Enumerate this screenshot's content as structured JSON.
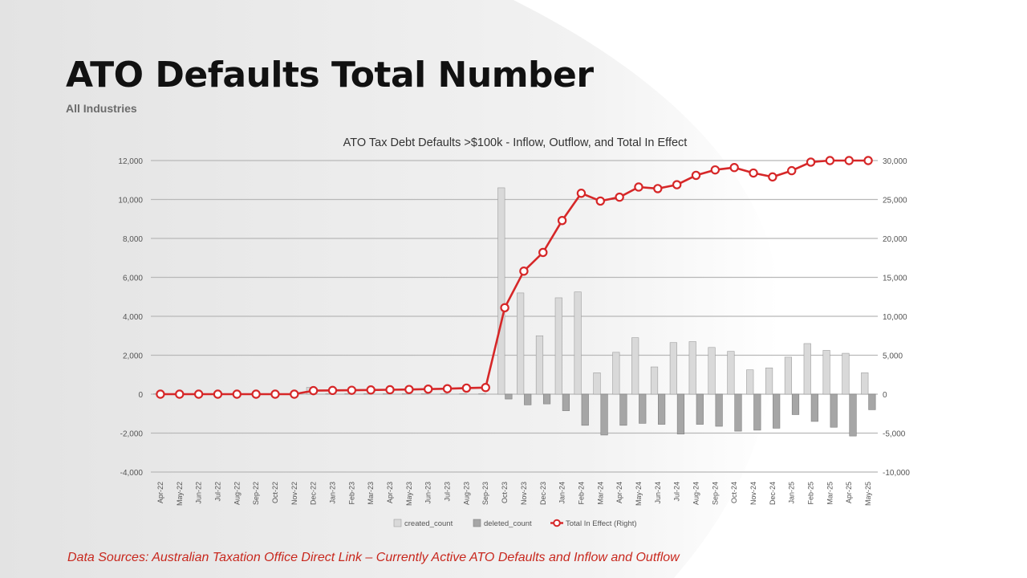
{
  "slide": {
    "title": "ATO Defaults Total Number",
    "subtitle": "All Industries",
    "footer": "Data Sources: Australian Taxation Office Direct Link – Currently Active ATO Defaults and Inflow and Outflow",
    "accent_color": "#c8281e"
  },
  "chart_data": {
    "type": "bar",
    "title": "ATO Tax Debt Defaults >$100k - Inflow, Outflow, and Total In Effect",
    "xlabel": "",
    "ylabel": "",
    "categories": [
      "Apr-22",
      "May-22",
      "Jun-22",
      "Jul-22",
      "Aug-22",
      "Sep-22",
      "Oct-22",
      "Nov-22",
      "Dec-22",
      "Jan-23",
      "Feb-23",
      "Mar-23",
      "Apr-23",
      "May-23",
      "Jun-23",
      "Jul-23",
      "Aug-23",
      "Sep-23",
      "Oct-23",
      "Nov-23",
      "Dec-23",
      "Jan-24",
      "Feb-24",
      "Mar-24",
      "Apr-24",
      "May-24",
      "Jun-24",
      "Jul-24",
      "Aug-24",
      "Sep-24",
      "Oct-24",
      "Nov-24",
      "Dec-24",
      "Jan-25",
      "Feb-25",
      "Mar-25",
      "Apr-25",
      "May-25"
    ],
    "ylim": [
      -4000,
      12000
    ],
    "y2lim": [
      -10000,
      30000
    ],
    "yticks": [
      "12,000",
      "10,000",
      "8,000",
      "6,000",
      "4,000",
      "2,000",
      "0",
      "-2,000",
      "-4,000"
    ],
    "y2ticks": [
      "30,000",
      "25,000",
      "20,000",
      "15,000",
      "10,000",
      "5,000",
      "0",
      "-5,000",
      "-10,000"
    ],
    "grid": true,
    "legend_position": "bottom",
    "series": [
      {
        "name": "created_count",
        "type": "bar",
        "axis": "left",
        "color": "#d9d9d9",
        "values": [
          20,
          0,
          0,
          0,
          0,
          0,
          0,
          0,
          350,
          30,
          30,
          30,
          30,
          30,
          30,
          30,
          30,
          30,
          10600,
          5200,
          3000,
          4950,
          5250,
          1100,
          2150,
          2900,
          1400,
          2650,
          2700,
          2400,
          2200,
          1250,
          1350,
          1900,
          2600,
          2250,
          2100,
          1100
        ]
      },
      {
        "name": "deleted_count",
        "type": "bar",
        "axis": "left",
        "color": "#a6a6a6",
        "values": [
          0,
          0,
          0,
          0,
          0,
          0,
          0,
          0,
          0,
          0,
          0,
          0,
          0,
          0,
          0,
          0,
          0,
          0,
          -250,
          -550,
          -500,
          -850,
          -1600,
          -2100,
          -1600,
          -1500,
          -1550,
          -2050,
          -1550,
          -1650,
          -1900,
          -1850,
          -1750,
          -1050,
          -1400,
          -1700,
          -2150,
          -800
        ]
      },
      {
        "name": "Total In Effect (Right)",
        "type": "line",
        "axis": "right",
        "color": "#d62728",
        "values": [
          0,
          0,
          0,
          0,
          0,
          0,
          0,
          0,
          450,
          480,
          500,
          540,
          570,
          600,
          650,
          700,
          780,
          850,
          11100,
          15800,
          18200,
          22300,
          25800,
          24800,
          25300,
          26600,
          26400,
          26900,
          28100,
          28800,
          29100,
          28400,
          27900,
          28700,
          29800,
          30000,
          30000,
          30000
        ]
      }
    ]
  }
}
